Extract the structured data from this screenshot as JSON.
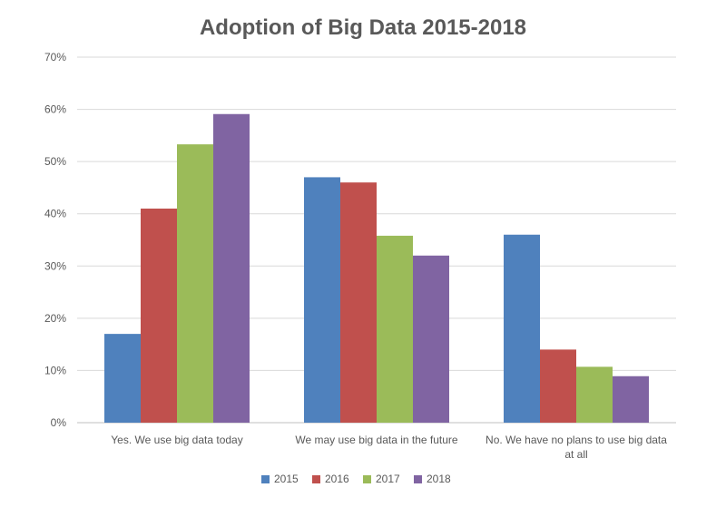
{
  "chart_data": {
    "type": "bar",
    "title": "Adoption of Big Data 2015-2018",
    "xlabel": "",
    "ylabel": "",
    "ylim": [
      0,
      70
    ],
    "ytick_step": 10,
    "ytick_labels": [
      "0%",
      "10%",
      "20%",
      "30%",
      "40%",
      "50%",
      "60%",
      "70%"
    ],
    "grid": true,
    "legend_position": "bottom",
    "categories": [
      [
        "Yes. We use big data today"
      ],
      [
        "We may use big data in the future"
      ],
      [
        "No. We have no plans to use big data",
        "at all"
      ]
    ],
    "series": [
      {
        "name": "2015",
        "color": "#4F81BD",
        "values": [
          17,
          47,
          36
        ]
      },
      {
        "name": "2016",
        "color": "#C0504D",
        "values": [
          41,
          46,
          14
        ]
      },
      {
        "name": "2017",
        "color": "#9BBB59",
        "values": [
          53.3,
          35.8,
          10.7
        ]
      },
      {
        "name": "2018",
        "color": "#8064A2",
        "values": [
          59.1,
          32,
          8.9
        ]
      }
    ]
  }
}
